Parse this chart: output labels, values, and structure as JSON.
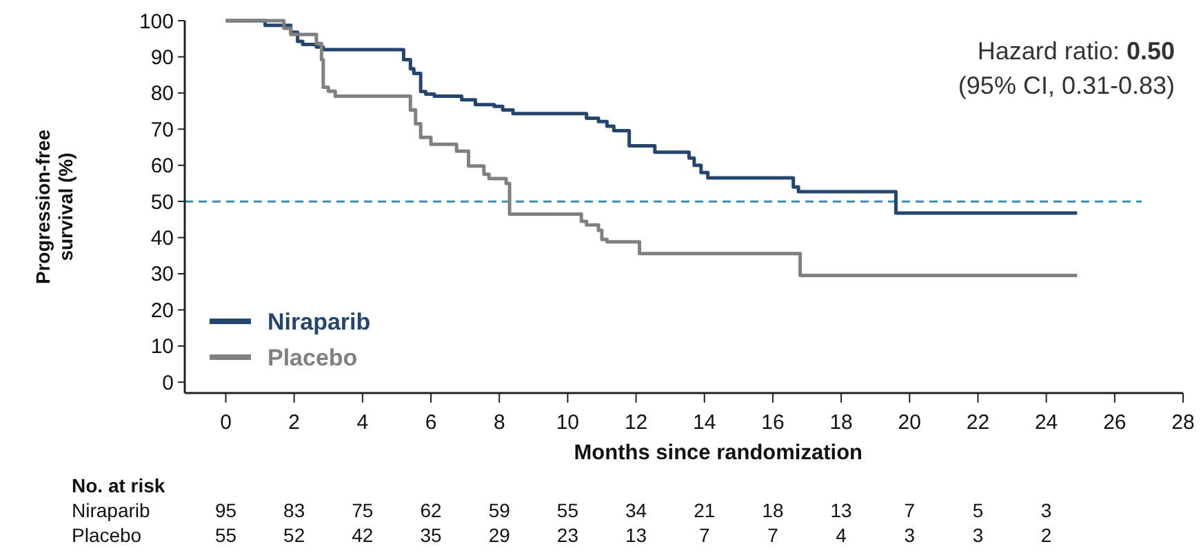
{
  "chart_data": {
    "type": "step",
    "xlabel": "Months since randomization",
    "ylabel": "Progression-free survival (%)",
    "xlim": [
      -1.2,
      28
    ],
    "ylim": [
      -3,
      100
    ],
    "xticks": [
      0,
      2,
      4,
      6,
      8,
      10,
      12,
      14,
      16,
      18,
      20,
      22,
      24,
      26,
      28
    ],
    "yticks": [
      0,
      10,
      20,
      30,
      40,
      50,
      60,
      70,
      80,
      90,
      100
    ],
    "grid": false,
    "legend": "bottom left",
    "line_style": "solid",
    "marker": "none",
    "series": [
      {
        "name": "Niraparib",
        "color": "#24466e",
        "x": [
          0,
          1.15,
          1.9,
          2.1,
          2.25,
          2.65,
          2.85,
          5.2,
          5.4,
          5.5,
          5.7,
          5.85,
          6.1,
          6.9,
          7.3,
          7.85,
          8.1,
          8.4,
          10.55,
          10.9,
          11.15,
          11.35,
          11.8,
          12.55,
          13.55,
          13.7,
          13.9,
          14.1,
          16.6,
          16.75,
          19.6,
          24.9
        ],
        "values": [
          100,
          98.7,
          96.8,
          94.3,
          93.4,
          92.7,
          92,
          89.2,
          86.7,
          85.4,
          80.4,
          79.7,
          79.1,
          78.1,
          76.8,
          76.3,
          75.3,
          74.3,
          73,
          72.1,
          70.8,
          69.6,
          65.4,
          63.6,
          62,
          60,
          58,
          56.5,
          54,
          52.7,
          46.8,
          46.8
        ]
      },
      {
        "name": "Placebo",
        "color": "#808080",
        "x": [
          0,
          1.7,
          1.9,
          2.65,
          2.8,
          2.85,
          3,
          3.2,
          5.4,
          5.55,
          5.7,
          6,
          6.75,
          7.1,
          7.55,
          7.7,
          8.2,
          8.3,
          10.4,
          10.55,
          10.9,
          11,
          11.15,
          12.1,
          16.8,
          24.9
        ],
        "values": [
          100,
          97.9,
          96.2,
          93.7,
          89.2,
          81.6,
          80.5,
          79.1,
          75.3,
          71.5,
          67.7,
          65.8,
          63.9,
          59.8,
          57.5,
          56.3,
          55,
          46.5,
          44.5,
          43.5,
          42,
          39.5,
          38.8,
          35.6,
          29.5,
          29.5
        ]
      }
    ],
    "ref_lines": [
      {
        "axis": "y",
        "value": 50,
        "color": "#3a8fa8",
        "line_style": "dashed"
      }
    ],
    "annotations": [
      "Hazard ratio: 0.50",
      "(95% CI, 0.31-0.83)",
      "No. at risk",
      [
        "Niraparib",
        "95",
        "83",
        "75",
        "62",
        "59",
        "55",
        "34",
        "21",
        "18",
        "13",
        "7",
        "5",
        "3"
      ],
      [
        "Placebo",
        "55",
        "52",
        "42",
        "35",
        "29",
        "23",
        "13",
        "7",
        "7",
        "4",
        "3",
        "3",
        "2"
      ]
    ]
  }
}
